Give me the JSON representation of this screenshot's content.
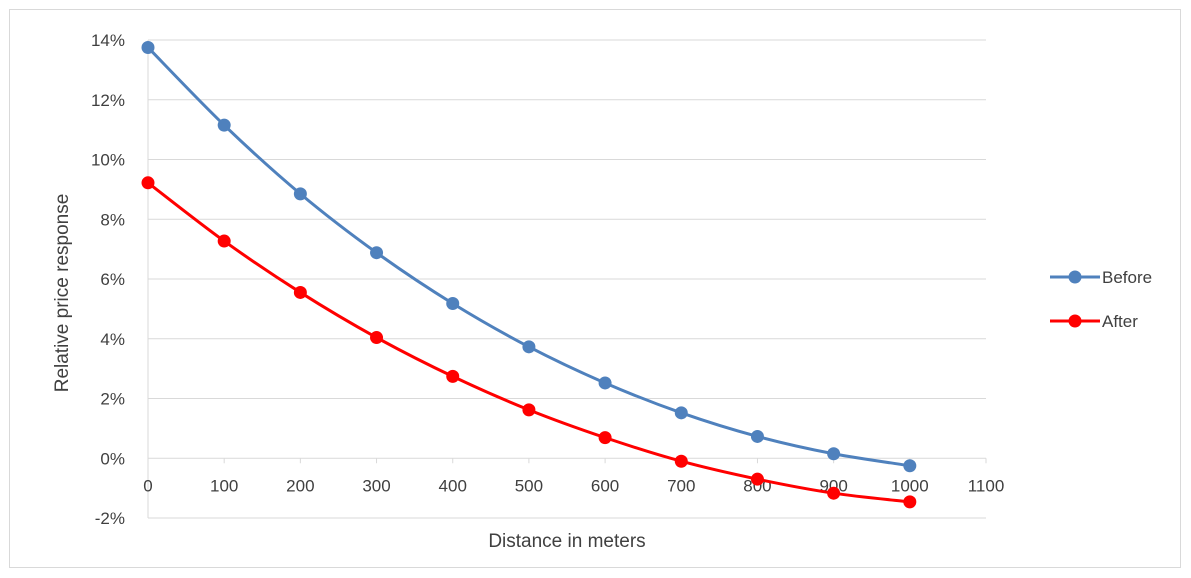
{
  "chart_data": {
    "type": "line",
    "xlabel": "Distance in meters",
    "ylabel": "Relative price response",
    "xlim": [
      0,
      1100
    ],
    "ylim": [
      -0.02,
      0.14
    ],
    "x_ticks": [
      0,
      100,
      200,
      300,
      400,
      500,
      600,
      700,
      800,
      900,
      1000,
      1100
    ],
    "y_ticks": [
      -0.02,
      0,
      0.02,
      0.04,
      0.06,
      0.08,
      0.1,
      0.12,
      0.14
    ],
    "y_tick_labels": [
      "-2%",
      "0%",
      "2%",
      "4%",
      "6%",
      "8%",
      "10%",
      "12%",
      "14%"
    ],
    "grid": "horizontal",
    "legend_position": "right",
    "x": [
      0,
      100,
      200,
      300,
      400,
      500,
      600,
      700,
      800,
      900,
      1000
    ],
    "series": [
      {
        "name": "Before",
        "color": "#4f81bd",
        "values": [
          0.1375,
          0.1115,
          0.0885,
          0.0688,
          0.0518,
          0.0373,
          0.0252,
          0.0152,
          0.0073,
          0.0015,
          -0.0025
        ]
      },
      {
        "name": "After",
        "color": "#ff0000",
        "values": [
          0.0922,
          0.0727,
          0.0555,
          0.0404,
          0.0274,
          0.0162,
          0.0069,
          -0.001,
          -0.007,
          -0.0117,
          -0.0146
        ]
      }
    ]
  }
}
